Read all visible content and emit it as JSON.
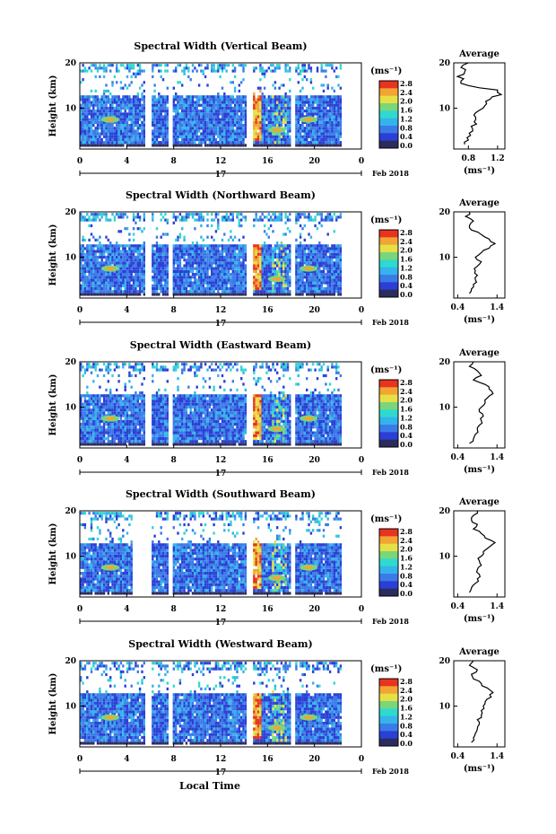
{
  "chart_data": [
    {
      "type": "heatmap",
      "title": "Spectral Width (Vertical Beam)",
      "ylabel": "Height (km)",
      "ylim": [
        1,
        20
      ],
      "yticks": [
        "20",
        "10"
      ],
      "xlim": [
        0,
        24
      ],
      "xticks": [
        "0",
        "4",
        "8",
        "12",
        "16",
        "20",
        "0"
      ],
      "colorbar_unit": "(ms⁻¹)",
      "colorbar_ticks": [
        "2.8",
        "2.4",
        "2.0",
        "1.6",
        "1.2",
        "0.8",
        "0.4",
        "0.0"
      ],
      "gaps": [
        [
          5.5,
          6.1
        ],
        [
          7.5,
          7.9
        ],
        [
          14.2,
          14.7
        ],
        [
          17.9,
          18.2
        ]
      ],
      "high_band": [
        14.7,
        15.4
      ],
      "profile": {
        "title": "Average",
        "xlabel": "(ms⁻¹)",
        "xticks": [
          "0.8",
          "1.2"
        ],
        "xlim": [
          0.6,
          1.3
        ],
        "yticks": [
          "20",
          "10"
        ],
        "heights": [
          2,
          3,
          4,
          5,
          6,
          7,
          8,
          9,
          10,
          11,
          12,
          13,
          14,
          15,
          16,
          17,
          18,
          19,
          20
        ],
        "values": [
          0.75,
          0.8,
          0.83,
          0.86,
          0.84,
          0.88,
          0.9,
          0.9,
          1.0,
          1.05,
          1.1,
          1.25,
          1.2,
          0.8,
          0.7,
          0.65,
          0.75,
          0.7,
          0.8
        ]
      }
    },
    {
      "type": "heatmap",
      "title": "Spectral Width (Northward Beam)",
      "ylabel": "Height (km)",
      "ylim": [
        1,
        20
      ],
      "yticks": [
        "20",
        "10"
      ],
      "xlim": [
        0,
        24
      ],
      "xticks": [
        "0",
        "4",
        "8",
        "12",
        "16",
        "20",
        "0"
      ],
      "colorbar_unit": "(ms⁻¹)",
      "colorbar_ticks": [
        "2.8",
        "2.4",
        "2.0",
        "1.6",
        "1.2",
        "0.8",
        "0.4",
        "0.0"
      ],
      "gaps": [
        [
          5.5,
          6.1
        ],
        [
          7.5,
          7.9
        ],
        [
          14.2,
          14.7
        ],
        [
          17.9,
          18.2
        ]
      ],
      "high_band": [
        14.7,
        15.4
      ],
      "profile": {
        "title": "Average",
        "xlabel": "(ms⁻¹)",
        "xticks": [
          "0.4",
          "1.4"
        ],
        "xlim": [
          0.3,
          1.6
        ],
        "yticks": [
          "20",
          "10"
        ],
        "heights": [
          2,
          3,
          4,
          5,
          6,
          7,
          8,
          9,
          10,
          11,
          12,
          13,
          14,
          15,
          16,
          17,
          18,
          19,
          20
        ],
        "values": [
          0.7,
          0.75,
          0.8,
          0.85,
          0.9,
          0.85,
          0.9,
          1.0,
          0.85,
          1.0,
          1.2,
          1.35,
          1.2,
          1.0,
          0.75,
          0.7,
          0.8,
          0.6,
          0.7
        ]
      }
    },
    {
      "type": "heatmap",
      "title": "Spectral Width (Eastward Beam)",
      "ylabel": "Height (km)",
      "ylim": [
        1,
        20
      ],
      "yticks": [
        "20",
        "10"
      ],
      "xlim": [
        0,
        24
      ],
      "xticks": [
        "0",
        "4",
        "8",
        "12",
        "16",
        "20",
        "0"
      ],
      "colorbar_unit": "(ms⁻¹)",
      "colorbar_ticks": [
        "2.8",
        "2.4",
        "2.0",
        "1.6",
        "1.2",
        "0.8",
        "0.4",
        "0.0"
      ],
      "gaps": [
        [
          5.5,
          6.1
        ],
        [
          7.5,
          7.9
        ],
        [
          14.2,
          14.7
        ],
        [
          17.9,
          18.2
        ]
      ],
      "high_band": [
        14.7,
        15.4
      ],
      "profile": {
        "title": "Average",
        "xlabel": "(ms⁻¹)",
        "xticks": [
          "0.4",
          "1.4"
        ],
        "xlim": [
          0.3,
          1.6
        ],
        "yticks": [
          "20",
          "10"
        ],
        "heights": [
          2,
          3,
          4,
          5,
          6,
          7,
          8,
          9,
          10,
          11,
          12,
          13,
          14,
          15,
          16,
          17,
          18,
          19,
          20
        ],
        "values": [
          0.7,
          0.8,
          0.85,
          0.9,
          0.95,
          1.0,
          1.05,
          0.95,
          1.0,
          1.1,
          1.15,
          1.3,
          1.2,
          1.1,
          0.8,
          1.0,
          0.9,
          0.7,
          0.8
        ]
      }
    },
    {
      "type": "heatmap",
      "title": "Spectral Width (Southward Beam)",
      "ylabel": "Height (km)",
      "ylim": [
        1,
        20
      ],
      "yticks": [
        "20",
        "10"
      ],
      "xlim": [
        0,
        24
      ],
      "xticks": [
        "0",
        "4",
        "8",
        "12",
        "16",
        "20",
        "0"
      ],
      "colorbar_unit": "(ms⁻¹)",
      "colorbar_ticks": [
        "2.8",
        "2.4",
        "2.0",
        "1.6",
        "1.2",
        "0.8",
        "0.4",
        "0.0"
      ],
      "gaps": [
        [
          4.5,
          6.1
        ],
        [
          7.5,
          7.9
        ],
        [
          14.2,
          14.7
        ],
        [
          17.9,
          18.2
        ]
      ],
      "high_band": [
        14.7,
        15.4
      ],
      "profile": {
        "title": "Average",
        "xlabel": "(ms⁻¹)",
        "xticks": [
          "0.4",
          "1.4"
        ],
        "xlim": [
          0.3,
          1.6
        ],
        "yticks": [
          "20",
          "10"
        ],
        "heights": [
          2,
          3,
          4,
          5,
          6,
          7,
          8,
          9,
          10,
          11,
          12,
          13,
          14,
          15,
          16,
          17,
          18,
          19,
          20
        ],
        "values": [
          0.7,
          0.75,
          0.85,
          0.9,
          0.95,
          0.9,
          1.0,
          0.95,
          1.0,
          1.05,
          1.2,
          1.35,
          1.1,
          1.0,
          0.8,
          0.9,
          0.75,
          0.8,
          0.9
        ]
      }
    },
    {
      "type": "heatmap",
      "title": "Spectral Width (Westward Beam)",
      "ylabel": "Height (km)",
      "ylim": [
        1,
        20
      ],
      "yticks": [
        "20",
        "10"
      ],
      "xlim": [
        0,
        24
      ],
      "xticks": [
        "0",
        "4",
        "8",
        "12",
        "16",
        "20",
        "0"
      ],
      "colorbar_unit": "(ms⁻¹)",
      "colorbar_ticks": [
        "2.8",
        "2.4",
        "2.0",
        "1.6",
        "1.2",
        "0.8",
        "0.4",
        "0.0"
      ],
      "gaps": [
        [
          5.5,
          6.1
        ],
        [
          7.5,
          7.9
        ],
        [
          14.2,
          14.7
        ],
        [
          17.9,
          18.2
        ]
      ],
      "high_band": [
        14.7,
        15.4
      ],
      "profile": {
        "title": "Average",
        "xlabel": "(ms⁻¹)",
        "xticks": [
          "0.4",
          "1.4"
        ],
        "xlim": [
          0.3,
          1.6
        ],
        "yticks": [
          "20",
          "10"
        ],
        "heights": [
          2,
          3,
          4,
          5,
          6,
          7,
          8,
          9,
          10,
          11,
          12,
          13,
          14,
          15,
          16,
          17,
          18,
          19,
          20
        ],
        "values": [
          0.75,
          0.8,
          0.85,
          0.9,
          0.95,
          0.9,
          1.0,
          1.0,
          1.05,
          1.1,
          1.25,
          1.3,
          1.15,
          1.0,
          0.8,
          0.75,
          0.9,
          0.7,
          0.8
        ]
      }
    }
  ],
  "date_label": "17",
  "month_label": "Feb 2018",
  "xlabel_bottom": "Local Time",
  "colors": [
    "#2b2b5e",
    "#2a3fd6",
    "#3b7be8",
    "#34b4ea",
    "#2fd9d0",
    "#7ad67a",
    "#e6e046",
    "#f2a533",
    "#e8331f"
  ]
}
